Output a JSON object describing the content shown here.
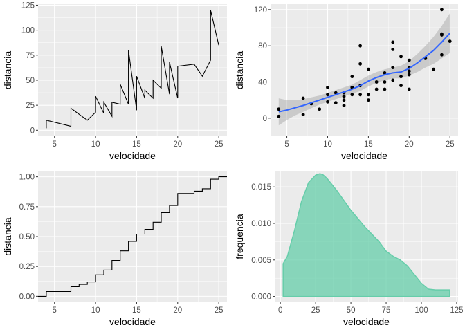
{
  "colors": {
    "panel": "#ebebeb",
    "grid": "#ffffff",
    "line": "#000000",
    "smooth": "#3366ff",
    "band": "#999999",
    "density": "#66cdaa"
  },
  "chart_data": [
    {
      "type": "line",
      "xlabel": "velocidade",
      "ylabel": "distancia",
      "xlim": [
        3.0,
        26.0
      ],
      "ylim": [
        -6,
        126
      ],
      "xticks": [
        5,
        10,
        15,
        20,
        25
      ],
      "yticks": [
        0,
        25,
        50,
        75,
        100,
        125
      ],
      "x": [
        4,
        4,
        7,
        7,
        8,
        9,
        10,
        10,
        10,
        11,
        11,
        12,
        12,
        12,
        12,
        13,
        13,
        13,
        13,
        14,
        14,
        14,
        14,
        15,
        15,
        15,
        16,
        16,
        17,
        17,
        17,
        18,
        18,
        18,
        18,
        19,
        19,
        19,
        20,
        20,
        20,
        20,
        20,
        22,
        23,
        24,
        24,
        24,
        24,
        25
      ],
      "y": [
        2,
        10,
        4,
        22,
        16,
        10,
        18,
        26,
        34,
        17,
        28,
        14,
        20,
        24,
        28,
        26,
        34,
        34,
        46,
        26,
        36,
        60,
        80,
        20,
        26,
        54,
        32,
        40,
        32,
        40,
        50,
        42,
        56,
        76,
        84,
        36,
        46,
        68,
        32,
        48,
        52,
        56,
        64,
        66,
        54,
        70,
        92,
        93,
        120,
        85
      ]
    },
    {
      "type": "scatter",
      "xlabel": "velocidade",
      "ylabel": "distancia",
      "xlim": [
        3.0,
        26.0
      ],
      "ylim": [
        -20,
        126
      ],
      "xticks": [
        5,
        10,
        15,
        20,
        25
      ],
      "yticks": [
        0,
        40,
        80,
        120
      ],
      "x": [
        4,
        4,
        7,
        7,
        8,
        9,
        10,
        10,
        10,
        11,
        11,
        12,
        12,
        12,
        12,
        13,
        13,
        13,
        13,
        14,
        14,
        14,
        14,
        15,
        15,
        15,
        16,
        16,
        17,
        17,
        17,
        18,
        18,
        18,
        18,
        19,
        19,
        19,
        20,
        20,
        20,
        20,
        20,
        22,
        23,
        24,
        24,
        24,
        24,
        25
      ],
      "y": [
        2,
        10,
        4,
        22,
        16,
        10,
        18,
        26,
        34,
        17,
        28,
        14,
        20,
        24,
        28,
        26,
        34,
        34,
        46,
        26,
        36,
        60,
        80,
        20,
        26,
        54,
        32,
        40,
        32,
        40,
        50,
        42,
        56,
        76,
        84,
        36,
        46,
        68,
        32,
        48,
        52,
        56,
        64,
        66,
        54,
        70,
        92,
        93,
        120,
        85
      ],
      "smooth": {
        "x": [
          4,
          5,
          6,
          7,
          8,
          9,
          10,
          11,
          12,
          13,
          14,
          15,
          16,
          17,
          18,
          19,
          20,
          21,
          22,
          23,
          24,
          25
        ],
        "y": [
          7,
          9,
          11.5,
          14,
          17,
          20,
          23,
          26,
          29,
          32,
          36,
          41,
          45,
          48,
          50,
          51,
          55,
          61,
          68,
          75,
          84,
          94
        ],
        "lo": [
          -8,
          -2,
          3,
          7,
          11,
          15,
          18,
          21,
          24,
          27,
          30,
          35,
          39,
          42,
          44,
          44,
          47,
          51,
          56,
          60,
          66,
          72
        ],
        "hi": [
          22,
          20,
          20,
          21,
          23,
          25,
          28,
          31,
          34,
          37,
          42,
          47,
          51,
          54,
          56,
          58,
          63,
          71,
          80,
          90,
          102,
          116
        ]
      }
    },
    {
      "type": "line",
      "subtype": "ecdf",
      "xlabel": "velocidade",
      "ylabel": "distancia",
      "xlim": [
        3.0,
        26.0
      ],
      "ylim": [
        -0.05,
        1.05
      ],
      "xticks": [
        5,
        10,
        15,
        20,
        25
      ],
      "yticks": [
        0.0,
        0.25,
        0.5,
        0.75,
        1.0
      ],
      "ytick_labels": [
        "0.00",
        "0.25",
        "0.50",
        "0.75",
        "1.00"
      ],
      "x": [
        4,
        7,
        8,
        9,
        10,
        11,
        12,
        13,
        14,
        15,
        16,
        17,
        18,
        19,
        20,
        22,
        23,
        24,
        25
      ],
      "y": [
        0.04,
        0.08,
        0.1,
        0.12,
        0.18,
        0.22,
        0.3,
        0.38,
        0.46,
        0.52,
        0.56,
        0.62,
        0.7,
        0.76,
        0.86,
        0.88,
        0.9,
        0.98,
        1.0
      ]
    },
    {
      "type": "area",
      "subtype": "density",
      "xlabel": "velocidade",
      "ylabel": "frequencia",
      "xlim": [
        -4,
        126
      ],
      "ylim": [
        -0.0008,
        0.0172
      ],
      "xticks": [
        0,
        25,
        50,
        75,
        100,
        125
      ],
      "yticks": [
        0,
        0.005,
        0.01,
        0.015
      ],
      "ytick_labels": [
        "0.000",
        "0.005",
        "0.010",
        "0.015"
      ],
      "x": [
        2,
        5,
        10,
        15,
        20,
        25,
        28,
        30,
        33,
        40,
        50,
        60,
        70,
        75,
        80,
        85,
        90,
        95,
        100,
        105,
        110,
        115,
        120
      ],
      "y": [
        0.0045,
        0.0055,
        0.009,
        0.013,
        0.0156,
        0.0166,
        0.0168,
        0.0167,
        0.0162,
        0.0145,
        0.0118,
        0.0095,
        0.0075,
        0.0062,
        0.0055,
        0.005,
        0.0042,
        0.003,
        0.0018,
        0.001,
        0.0009,
        0.0009,
        0.0009
      ]
    }
  ]
}
